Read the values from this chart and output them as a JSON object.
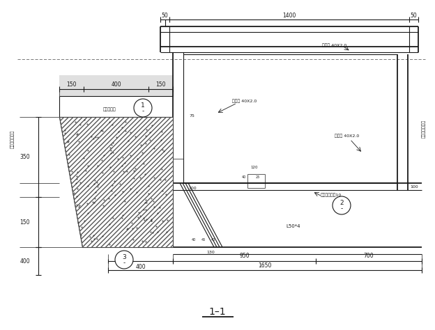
{
  "title": "1–1",
  "bg_color": "#ffffff",
  "line_color": "#1a1a1a",
  "fig_width": 6.24,
  "fig_height": 4.74,
  "dpi": 100,
  "annotations": {
    "label_steel_top": "角锢钟 40X2.0",
    "label_steel_mid_left": "角锢钟 40X2.0",
    "label_steel_mid_right": "角锢钟 40X2.0",
    "label_L50": "L50*4",
    "label_ref2": "镜面安装节炰10",
    "label_left_vert": "屋面完工面标高",
    "label_right_vert": "屋面完工面标高",
    "label_concrete": "混凝土娆层"
  }
}
